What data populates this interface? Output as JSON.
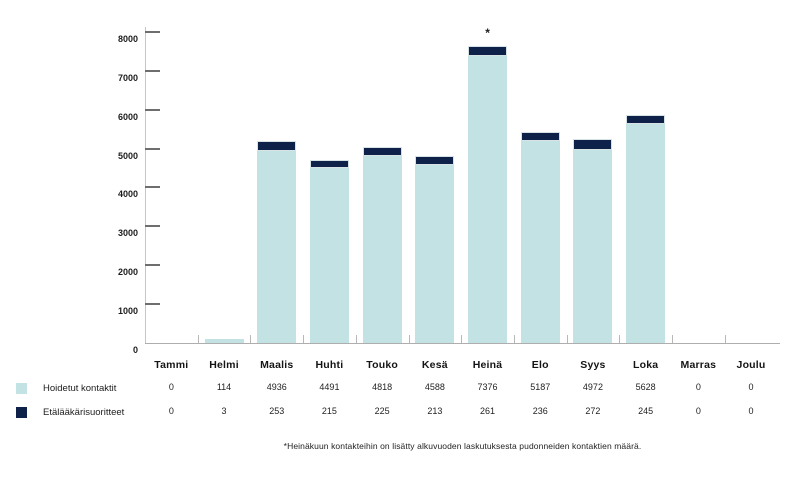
{
  "chart_data": {
    "type": "bar",
    "stacked": true,
    "categories": [
      "Tammi",
      "Helmi",
      "Maalis",
      "Huhti",
      "Touko",
      "Kesä",
      "Heinä",
      "Elo",
      "Syys",
      "Loka",
      "Marras",
      "Joulu"
    ],
    "series": [
      {
        "name": "Hoidetut kontaktit",
        "color": "#c2e2e4",
        "values": [
          0,
          114,
          4936,
          4491,
          4818,
          4588,
          7376,
          5187,
          4972,
          5628,
          0,
          0
        ]
      },
      {
        "name": "Etälääkärisuoritteet",
        "color": "#0e2148",
        "values": [
          0,
          3,
          253,
          215,
          225,
          213,
          261,
          236,
          272,
          245,
          0,
          0
        ]
      }
    ],
    "title": "",
    "xlabel": "",
    "ylabel": "",
    "ylim": [
      0,
      8000
    ],
    "ytick_step": 1000,
    "y_tick_labels": [
      "0",
      "1000",
      "2000",
      "3000",
      "4000",
      "5000",
      "6000",
      "7000",
      "8000"
    ],
    "grid": false,
    "legend_position": "bottom-left",
    "annotations": [
      {
        "category": "Heinä",
        "text": "*"
      }
    ]
  },
  "legend": {
    "items": [
      {
        "label": "Hoidetut kontaktit",
        "color": "#c2e2e4"
      },
      {
        "label": "Etälääkärisuoritteet",
        "color": "#0e2148"
      }
    ]
  },
  "footnote": "*Heinäkuun kontakteihin on lisätty alkuvuoden laskutuksesta pudonneiden kontaktien määrä."
}
